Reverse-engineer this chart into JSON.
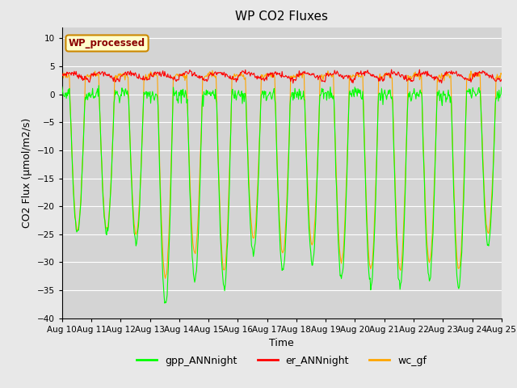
{
  "title": "WP CO2 Fluxes",
  "xlabel": "Time",
  "ylabel": "CO2 Flux (μmol/m2/s)",
  "ylim": [
    -40,
    12
  ],
  "yticks": [
    -40,
    -35,
    -30,
    -25,
    -20,
    -15,
    -10,
    -5,
    0,
    5,
    10
  ],
  "bg_color": "#e8e8e8",
  "plot_bg_color": "#d4d4d4",
  "annotation_text": "WP_processed",
  "annotation_color": "#8b0000",
  "annotation_bg": "#ffffcc",
  "annotation_border": "#cc8800",
  "line_colors": {
    "gpp": "#00ff00",
    "er": "#ff0000",
    "wc": "#ffa500"
  },
  "legend_labels": [
    "gpp_ANNnight",
    "er_ANNnight",
    "wc_gf"
  ],
  "n_days": 15,
  "points_per_day": 48,
  "start_day": 10,
  "gpp_day_amps": [
    0.83,
    0.83,
    0.88,
    1.25,
    1.1,
    1.15,
    0.95,
    1.05,
    1.0,
    1.1,
    1.15,
    1.15,
    1.1,
    1.15,
    0.9
  ],
  "wc_day_amps": [
    0.85,
    0.85,
    0.88,
    1.15,
    1.0,
    1.1,
    0.9,
    1.0,
    0.95,
    1.05,
    1.1,
    1.1,
    1.05,
    1.1,
    0.87
  ]
}
